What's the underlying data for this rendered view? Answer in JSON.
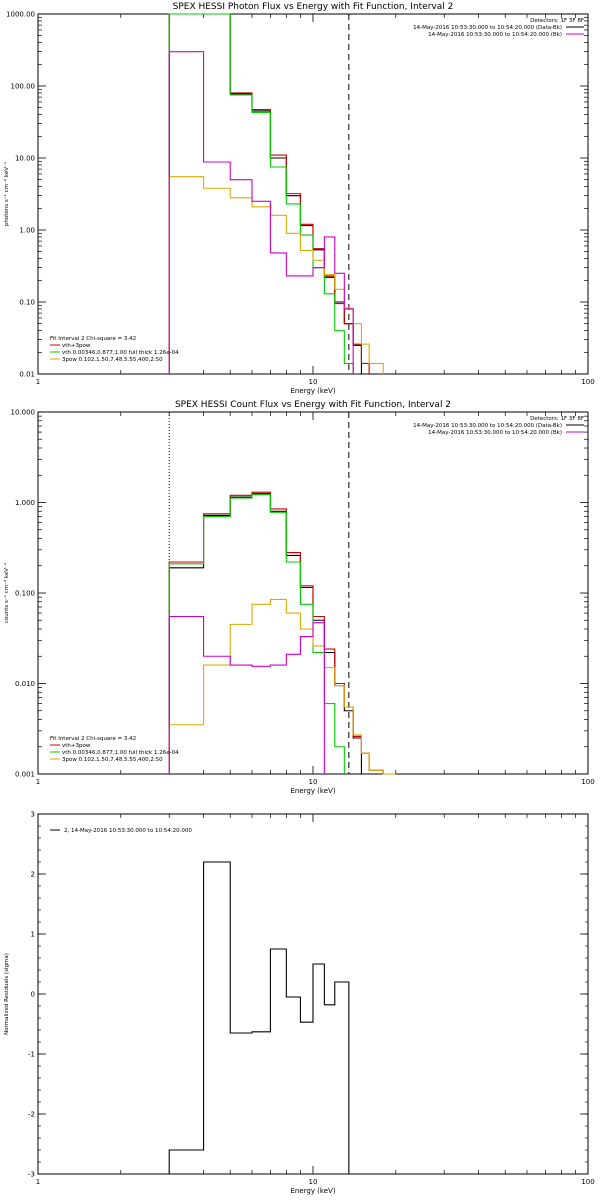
{
  "colors": {
    "axis": "#000000",
    "data": "#000000",
    "total_model": "#cc0000",
    "thermal": "#00cc00",
    "nonthermal": "#ddaa00",
    "background": "#cc00cc"
  },
  "chart_data": [
    {
      "type": "line",
      "title": "SPEX HESSI Photon Flux vs Energy with Fit Function, Interval 2",
      "xlabel": "Energy (keV)",
      "ylabel": "photons s⁻¹ cm⁻² keV⁻¹",
      "xscale": "log",
      "yscale": "log",
      "xlim": [
        1,
        100
      ],
      "ylim": [
        0.01,
        1000
      ],
      "xticks": [
        1,
        10,
        100
      ],
      "xtick_labels": [
        "1",
        "10",
        "100"
      ],
      "yticks": [
        0.01,
        0.1,
        1,
        10,
        100,
        1000
      ],
      "ytick_labels": [
        "0.01",
        "0.10",
        "1.00",
        "10.00",
        "100.00",
        "1000.00"
      ],
      "vlines": [
        {
          "x": 3.0,
          "style": "dotted"
        },
        {
          "x": 13.5,
          "style": "dashed"
        }
      ],
      "legend_top_right": [
        "Detectors: 1F 3F 8F",
        "14-May-2016 10:53:30.000 to 10:54:20.000 (Data-Bk)",
        "14-May-2016 10:53:30.000 to 10:54:20.000 (Bk)"
      ],
      "legend_bottom_left": [
        "Fit Interval 2   Chi-square = 3.42",
        "vth+3pow",
        "vth 0.00346,0.877,1.00  full thick 1.26e-04",
        "3pow 0.102,1.50,7.48,5.55,400,2.50"
      ],
      "edges": [
        3.0,
        4.0,
        5.0,
        6.0,
        7.0,
        8.0,
        9.0,
        10.0,
        11.0,
        12.0,
        13.0,
        14.0,
        15.0,
        16.0,
        18.0
      ],
      "series": [
        {
          "name": "Data-Bk",
          "color_key": "data",
          "values": [
            1100,
            1100,
            78,
            45,
            10,
            3.0,
            1.15,
            0.53,
            0.22,
            0.1,
            0.05,
            0.025
          ]
        },
        {
          "name": "vth+3pow",
          "color_key": "total_model",
          "values": [
            1100,
            1100,
            80,
            47,
            11,
            3.2,
            1.2,
            0.55,
            0.23,
            0.095,
            0.05,
            0.026,
            0.014
          ]
        },
        {
          "name": "vth",
          "color_key": "thermal",
          "values": [
            1000,
            1000,
            75,
            43,
            7.5,
            2.3,
            0.85,
            0.3,
            0.13,
            0.04,
            0.014
          ]
        },
        {
          "name": "3pow",
          "color_key": "nonthermal",
          "values": [
            5.5,
            3.8,
            2.8,
            2.1,
            1.6,
            0.9,
            0.52,
            0.38,
            0.24,
            0.15,
            0.082,
            0.05,
            0.026,
            0.014
          ]
        },
        {
          "name": "Bk",
          "color_key": "background",
          "values": [
            300,
            8.8,
            5.0,
            2.5,
            0.48,
            0.23,
            0.23,
            0.3,
            0.8,
            0.25,
            0.08
          ]
        }
      ]
    },
    {
      "type": "line",
      "title": "SPEX HESSI Count Flux vs Energy with Fit Function, Interval 2",
      "xlabel": "Energy (keV)",
      "ylabel": "counts s⁻¹ cm⁻² keV⁻¹",
      "xscale": "log",
      "yscale": "log",
      "xlim": [
        1,
        100
      ],
      "ylim": [
        0.001,
        10
      ],
      "xticks": [
        1,
        10,
        100
      ],
      "xtick_labels": [
        "1",
        "10",
        "100"
      ],
      "yticks": [
        0.001,
        0.01,
        0.1,
        1,
        10
      ],
      "ytick_labels": [
        "0.001",
        "0.010",
        "0.100",
        "1.000",
        "10.000"
      ],
      "vlines": [
        {
          "x": 3.0,
          "style": "dotted"
        },
        {
          "x": 13.5,
          "style": "dashed"
        }
      ],
      "legend_top_right": [
        "Detectors: 1F 3F 8F",
        "14-May-2016 10:53:30.000 to 10:54:20.000 (Data-Bk)",
        "14-May-2016 10:53:30.000 to 10:54:20.000 (Bk)"
      ],
      "legend_bottom_left": [
        "Fit Interval 2   Chi-square = 3.42",
        "vth+3pow",
        "vth 0.00346,0.877,1.00  full thick 1.26e-04",
        "3pow 0.102,1.50,7.48,5.55,400,2.50"
      ],
      "edges": [
        3.0,
        4.0,
        5.0,
        6.0,
        7.0,
        8.0,
        9.0,
        10.0,
        11.0,
        12.0,
        13.0,
        14.0,
        15.0,
        16.0,
        18.0,
        20.0
      ],
      "series": [
        {
          "name": "Data-Bk",
          "color_key": "data",
          "values": [
            0.19,
            0.72,
            1.15,
            1.25,
            0.8,
            0.26,
            0.115,
            0.05,
            0.022,
            0.0095,
            0.005,
            0.0025
          ]
        },
        {
          "name": "vth+3pow",
          "color_key": "total_model",
          "values": [
            0.22,
            0.75,
            1.2,
            1.3,
            0.85,
            0.28,
            0.12,
            0.055,
            0.024,
            0.01,
            0.0055,
            0.0026,
            0.0017,
            0.0011,
            0.001
          ]
        },
        {
          "name": "vth",
          "color_key": "thermal",
          "values": [
            0.21,
            0.7,
            1.12,
            1.22,
            0.78,
            0.22,
            0.075,
            0.022,
            0.006,
            0.002
          ]
        },
        {
          "name": "3pow",
          "color_key": "nonthermal",
          "values": [
            0.0035,
            0.016,
            0.045,
            0.075,
            0.085,
            0.06,
            0.04,
            0.026,
            0.015,
            0.0095,
            0.0055,
            0.0027,
            0.0017,
            0.0011,
            0.001
          ]
        },
        {
          "name": "Bk",
          "color_key": "background",
          "values": [
            0.055,
            0.02,
            0.016,
            0.0155,
            0.016,
            0.021,
            0.033,
            0.047
          ]
        }
      ]
    },
    {
      "type": "line",
      "title": "",
      "xlabel": "Energy (keV)",
      "ylabel": "Normalized Residuals (sigma)",
      "xscale": "log",
      "yscale": "linear",
      "xlim": [
        1,
        100
      ],
      "ylim": [
        -3,
        3
      ],
      "xticks": [
        1,
        10,
        100
      ],
      "xtick_labels": [
        "1",
        "10",
        "100"
      ],
      "yticks": [
        -3,
        -2,
        -1,
        0,
        1,
        2,
        3
      ],
      "ytick_labels": [
        "-3",
        "-2",
        "-1",
        "0",
        "1",
        "2",
        "3"
      ],
      "legend_top_left": [
        "2, 14-May-2016 10:53:30.000 to 10:54:20.000"
      ],
      "edges": [
        3.0,
        4.0,
        5.0,
        6.0,
        7.0,
        8.0,
        9.0,
        10.0,
        11.0,
        12.0,
        13.5
      ],
      "series": [
        {
          "name": "2, 14-May-2016 10:53:30.000 to 10:54:20.000",
          "color_key": "data",
          "values": [
            -2.6,
            2.2,
            -0.65,
            -0.63,
            0.75,
            -0.05,
            -0.47,
            0.5,
            -0.18,
            0.2
          ]
        }
      ]
    }
  ]
}
